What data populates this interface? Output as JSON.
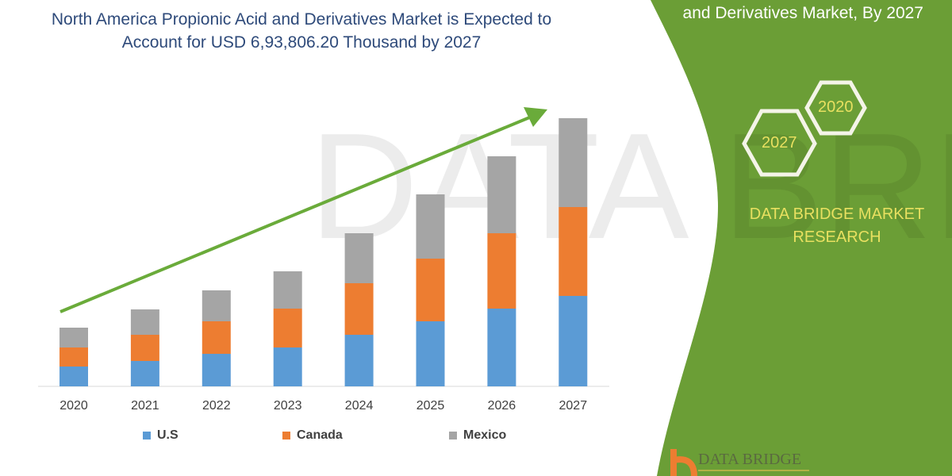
{
  "title": "North America Propionic Acid and Derivatives Market is Expected to Account for USD 6,93,806.20 Thousand by 2027",
  "side_panel": {
    "title": "and Derivatives Market, By 2027",
    "hex_labels": [
      "2020",
      "2027"
    ],
    "brand": "DATA BRIDGE MARKET RESEARCH",
    "logo_text": "DATA BRIDGE"
  },
  "colors": {
    "panel": "#6b9e36",
    "us": "#5b9bd5",
    "canada": "#ed7d31",
    "mexico": "#a5a5a5",
    "arrow": "#6aab3a"
  },
  "chart_data": {
    "type": "bar",
    "stacked": true,
    "categories": [
      "2020",
      "2021",
      "2022",
      "2023",
      "2024",
      "2025",
      "2026",
      "2027"
    ],
    "series": [
      {
        "name": "U.S",
        "values": [
          25,
          32,
          41,
          49,
          65,
          82,
          98,
          114
        ]
      },
      {
        "name": "Canada",
        "values": [
          24,
          33,
          41,
          49,
          65,
          79,
          95,
          112
        ]
      },
      {
        "name": "Mexico",
        "values": [
          25,
          32,
          39,
          47,
          63,
          81,
          97,
          112
        ]
      }
    ],
    "y_axis_shown": false,
    "grid": false,
    "legend_position": "bottom",
    "trend_arrow": true
  }
}
